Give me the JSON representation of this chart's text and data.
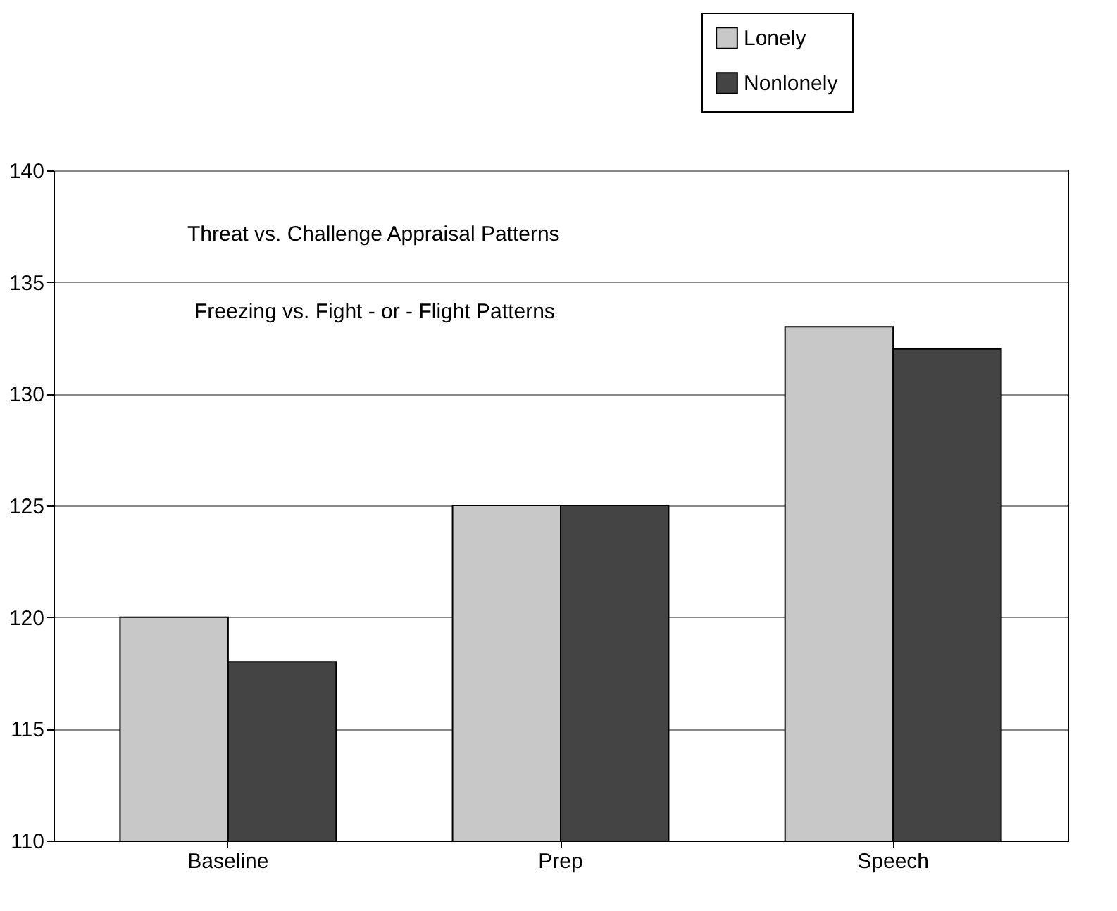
{
  "chart_data": {
    "type": "bar",
    "categories": [
      "Baseline",
      "Prep",
      "Speech"
    ],
    "series": [
      {
        "name": "Lonely",
        "color": "#c8c8c8",
        "values": [
          120,
          125,
          133
        ]
      },
      {
        "name": "Nonlonely",
        "color": "#444444",
        "values": [
          118,
          125,
          132
        ]
      }
    ],
    "ylim": [
      110,
      140
    ],
    "yticks": [
      110,
      115,
      120,
      125,
      130,
      135,
      140
    ],
    "grid": "y",
    "legend": "top right",
    "annotations": [
      "Threat vs. Challenge Appraisal Patterns",
      "Freezing vs. Fight - or - Flight Patterns"
    ]
  }
}
